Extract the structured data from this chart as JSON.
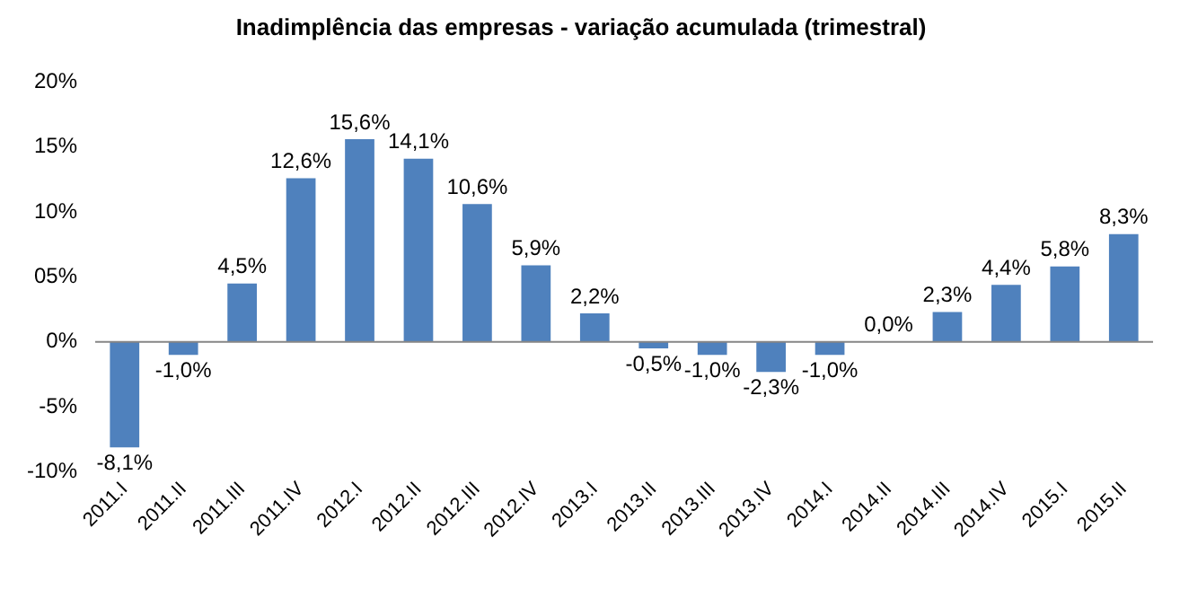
{
  "chart_data": {
    "type": "bar",
    "title": "Inadimplência das empresas - variação acumulada (trimestral)",
    "categories": [
      "2011.I",
      "2011.II",
      "2011.III",
      "2011.IV",
      "2012.I",
      "2012.II",
      "2012.III",
      "2012.IV",
      "2013.I",
      "2013.II",
      "2013.III",
      "2013.IV",
      "2014.I",
      "2014.II",
      "2014.III",
      "2014.IV",
      "2015.I",
      "2015.II"
    ],
    "values": [
      -8.1,
      -1.0,
      4.5,
      12.6,
      15.6,
      14.1,
      10.6,
      5.9,
      2.2,
      -0.5,
      -1.0,
      -2.3,
      -1.0,
      0.0,
      2.3,
      4.4,
      5.8,
      8.3
    ],
    "value_labels": [
      "-8,1%",
      "-1,0%",
      "4,5%",
      "12,6%",
      "15,6%",
      "14,1%",
      "10,6%",
      "5,9%",
      "2,2%",
      "-0,5%",
      "-1,0%",
      "-2,3%",
      "-1,0%",
      "0,0%",
      "2,3%",
      "4,4%",
      "5,8%",
      "8,3%"
    ],
    "color": "#4f81bd",
    "ylim": [
      -10,
      20
    ],
    "yticks": [
      {
        "value": -10,
        "label": "-10%"
      },
      {
        "value": -5,
        "label": "-5%"
      },
      {
        "value": 0,
        "label": "0%"
      },
      {
        "value": 5,
        "label": "05%"
      },
      {
        "value": 10,
        "label": "10%"
      },
      {
        "value": 15,
        "label": "15%"
      },
      {
        "value": 20,
        "label": "20%"
      }
    ],
    "ref_lines": [
      {
        "axis": "y",
        "value": 0,
        "color": "#868686"
      }
    ],
    "grid": false,
    "legend": false
  }
}
